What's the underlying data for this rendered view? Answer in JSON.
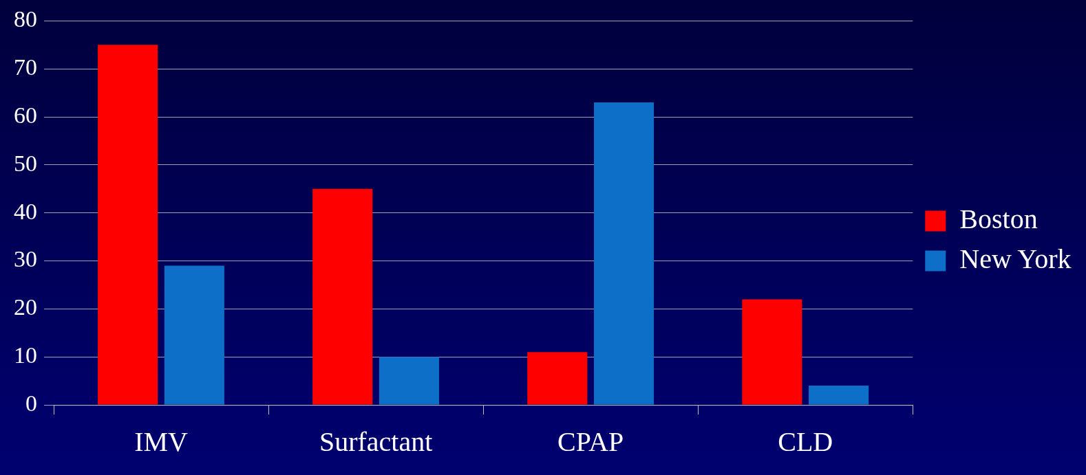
{
  "chart_data": {
    "type": "bar",
    "categories": [
      "IMV",
      "Surfactant",
      "CPAP",
      "CLD"
    ],
    "series": [
      {
        "name": "Boston",
        "color": "#ff0000",
        "values": [
          75,
          45,
          11,
          22
        ]
      },
      {
        "name": "New York",
        "color": "#0e6fc8",
        "values": [
          29,
          10,
          63,
          4
        ]
      }
    ],
    "ylim": [
      0,
      80
    ],
    "yticks": [
      0,
      10,
      20,
      30,
      40,
      50,
      60,
      70,
      80
    ],
    "grid": "y",
    "legend": "right"
  }
}
